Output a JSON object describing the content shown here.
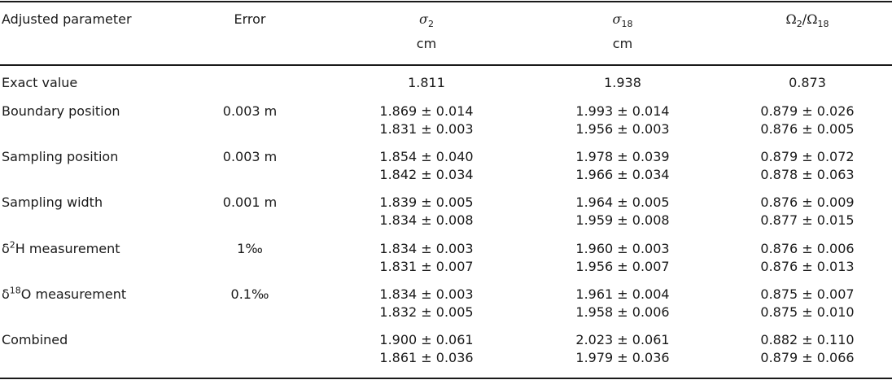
{
  "headers": {
    "param": "Adjusted parameter",
    "error": "Error",
    "sigma2": {
      "symbol": "σ",
      "sub": "2",
      "unit": "cm"
    },
    "sigma18": {
      "symbol": "σ",
      "sub": "18",
      "unit": "cm"
    },
    "ratio": {
      "sym1": "Ω",
      "sub1": "2",
      "slash": "/",
      "sym2": "Ω",
      "sub2": "18"
    }
  },
  "exact": {
    "label": "Exact value",
    "sigma2": "1.811",
    "sigma18": "1.938",
    "ratio": "0.873"
  },
  "rows": [
    {
      "label": "Boundary position",
      "error": "0.003 m",
      "sigma2": [
        "1.869 ± 0.014",
        "1.831 ± 0.003"
      ],
      "sigma18": [
        "1.993 ± 0.014",
        "1.956 ± 0.003"
      ],
      "ratio": [
        "0.879 ± 0.026",
        "0.876 ± 0.005"
      ]
    },
    {
      "label": "Sampling position",
      "error": "0.003 m",
      "sigma2": [
        "1.854 ± 0.040",
        "1.842 ± 0.034"
      ],
      "sigma18": [
        "1.978 ± 0.039",
        "1.966 ± 0.034"
      ],
      "ratio": [
        "0.879 ± 0.072",
        "0.878 ± 0.063"
      ]
    },
    {
      "label": "Sampling width",
      "error": "0.001 m",
      "sigma2": [
        "1.839 ± 0.005",
        "1.834 ± 0.008"
      ],
      "sigma18": [
        "1.964 ± 0.005",
        "1.959 ± 0.008"
      ],
      "ratio": [
        "0.876 ± 0.009",
        "0.877 ± 0.015"
      ]
    },
    {
      "label_pre": "δ",
      "label_sup": "2",
      "label_post": "H measurement",
      "error": "1‰",
      "sigma2": [
        "1.834 ± 0.003",
        "1.831 ± 0.007"
      ],
      "sigma18": [
        "1.960 ± 0.003",
        "1.956 ± 0.007"
      ],
      "ratio": [
        "0.876 ± 0.006",
        "0.876 ± 0.013"
      ]
    },
    {
      "label_pre": "δ",
      "label_sup": "18",
      "label_post": "O measurement",
      "error": "0.1‰",
      "sigma2": [
        "1.834 ± 0.003",
        "1.832 ± 0.005"
      ],
      "sigma18": [
        "1.961 ± 0.004",
        "1.958 ± 0.006"
      ],
      "ratio": [
        "0.875 ± 0.007",
        "0.875 ± 0.010"
      ]
    },
    {
      "label": "Combined",
      "error": "",
      "sigma2": [
        "1.900 ± 0.061",
        "1.861 ± 0.036"
      ],
      "sigma18": [
        "2.023 ± 0.061",
        "1.979 ± 0.036"
      ],
      "ratio": [
        "0.882 ± 0.110",
        "0.879 ± 0.066"
      ]
    }
  ]
}
